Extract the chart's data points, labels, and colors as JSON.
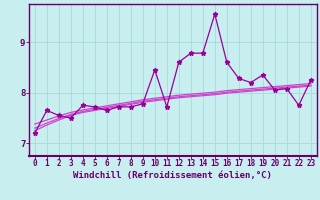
{
  "xlabel": "Windchill (Refroidissement éolien,°C)",
  "bg_color": "#c8eef0",
  "grid_color": "#aadddd",
  "line_color": "#990099",
  "regression_color": "#cc44cc",
  "axis_bar_color": "#660066",
  "x_values": [
    0,
    1,
    2,
    3,
    4,
    5,
    6,
    7,
    8,
    9,
    10,
    11,
    12,
    13,
    14,
    15,
    16,
    17,
    18,
    19,
    20,
    21,
    22,
    23
  ],
  "xtick_labels": [
    "0",
    "1",
    "2",
    "3",
    "4",
    "5",
    "6",
    "7",
    "8",
    "9",
    "10",
    "11",
    "12",
    "13",
    "14",
    "15",
    "16",
    "17",
    "18",
    "19",
    "20",
    "21",
    "22",
    "23"
  ],
  "y_main": [
    7.2,
    7.65,
    7.55,
    7.5,
    7.75,
    7.72,
    7.65,
    7.72,
    7.72,
    7.78,
    8.45,
    7.72,
    8.6,
    8.78,
    8.78,
    9.55,
    8.6,
    8.28,
    8.2,
    8.35,
    8.05,
    8.08,
    7.75,
    8.25
  ],
  "y_reg1": [
    7.25,
    7.36,
    7.46,
    7.55,
    7.61,
    7.65,
    7.69,
    7.73,
    7.77,
    7.81,
    7.84,
    7.87,
    7.9,
    7.92,
    7.94,
    7.96,
    7.99,
    8.01,
    8.03,
    8.05,
    8.07,
    8.09,
    8.11,
    8.13
  ],
  "y_reg2": [
    7.3,
    7.4,
    7.49,
    7.57,
    7.63,
    7.67,
    7.71,
    7.75,
    7.79,
    7.83,
    7.86,
    7.89,
    7.92,
    7.94,
    7.96,
    7.98,
    8.01,
    8.03,
    8.05,
    8.07,
    8.09,
    8.11,
    8.13,
    8.15
  ],
  "y_reg3": [
    7.38,
    7.46,
    7.54,
    7.61,
    7.66,
    7.7,
    7.74,
    7.78,
    7.82,
    7.86,
    7.89,
    7.92,
    7.95,
    7.97,
    7.99,
    8.01,
    8.04,
    8.06,
    8.08,
    8.1,
    8.12,
    8.14,
    8.16,
    8.18
  ],
  "ylim_min": 6.75,
  "ylim_max": 9.75,
  "yticks": [
    7,
    8,
    9
  ],
  "label_fontsize": 6.5,
  "tick_fontsize": 5.5,
  "axis_color": "#660066",
  "spine_color": "#660066"
}
